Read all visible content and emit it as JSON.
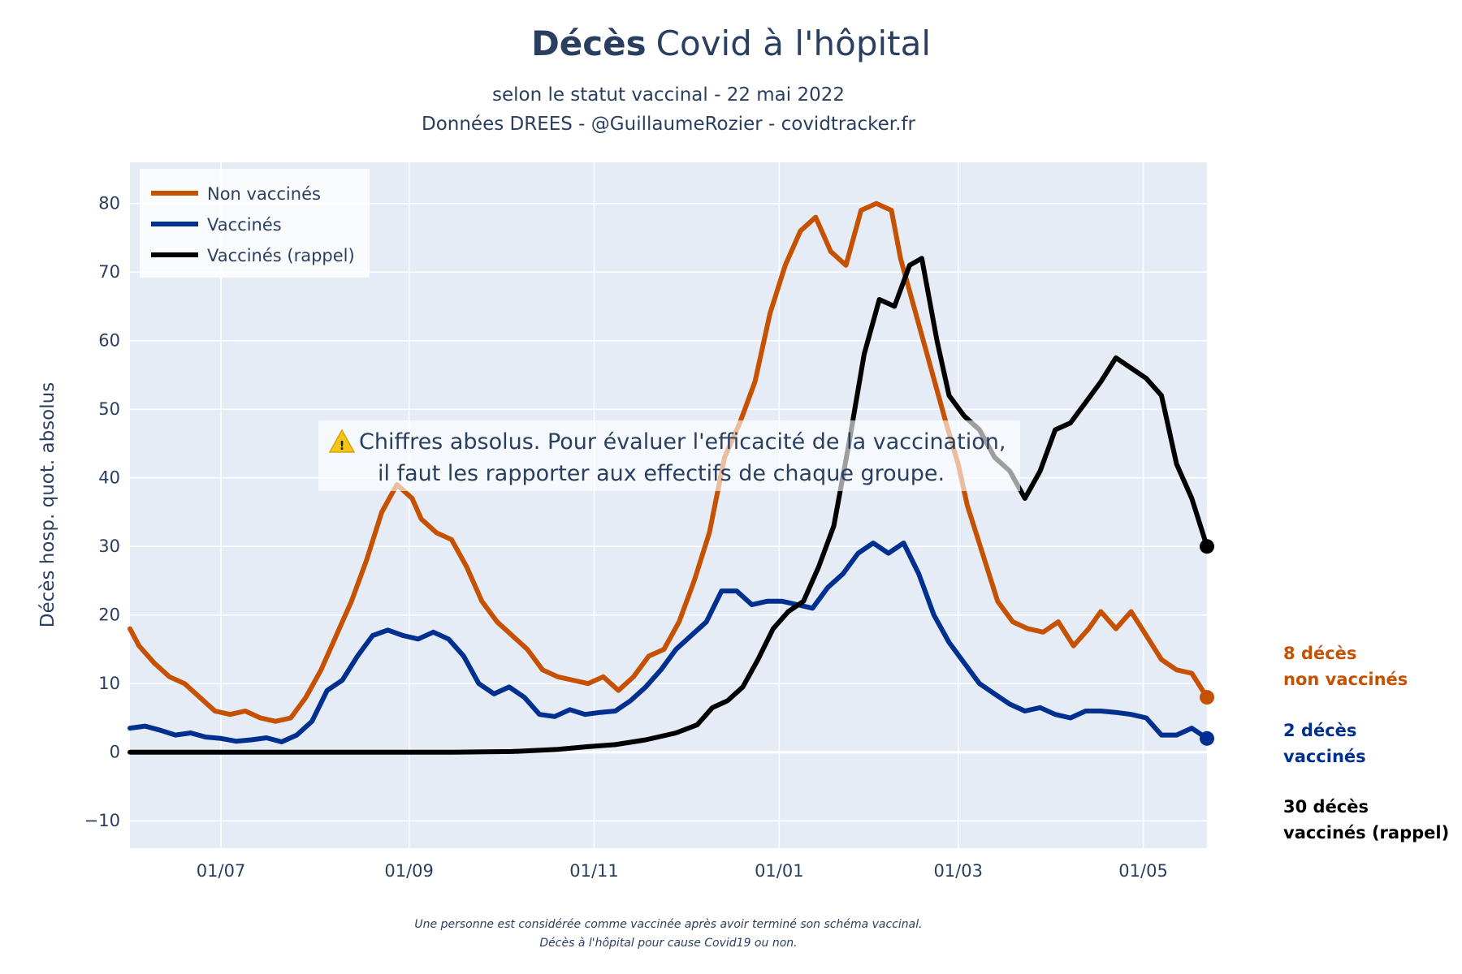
{
  "header": {
    "title_bold": "Décès",
    "title_rest": "Covid à l'hôpital",
    "subtitle_line1": "selon le statut vaccinal - 22 mai 2022",
    "subtitle_line2": "Données DREES - @GuillaumeRozier - covidtracker.fr"
  },
  "annotation": {
    "icon": "warning-icon",
    "line1": "Chiffres absolus. Pour évaluer l'efficacité de la vaccination,",
    "line2": "il faut les rapporter aux effectifs de chaque groupe."
  },
  "end_labels": {
    "non_vaccines_line1": "8 décès",
    "non_vaccines_line2": "non vaccinés",
    "vaccines_line1": "2 décès",
    "vaccines_line2": "vaccinés",
    "rappel_line1": "30 décès",
    "rappel_line2": "vaccinés (rappel)"
  },
  "footer": {
    "line1": "Une personne est considérée comme vaccinée après avoir terminé son schéma vaccinal.",
    "line2": "Décès à l'hôpital pour cause Covid19 ou non."
  },
  "colors": {
    "non_vaccines": "#c65102",
    "vaccines": "#00308f",
    "rappel": "#000000",
    "plot_bg": "#e5ecf6",
    "grid": "#ffffff",
    "text": "#2a3f5f"
  },
  "chart_data": {
    "type": "line",
    "ylabel": "Décès hosp. quot. absolus",
    "xlabel": "",
    "xlim": [
      "2021-06-01",
      "2022-05-22"
    ],
    "ylim": [
      -14,
      86
    ],
    "xticks": [
      {
        "date": "2021-07-01",
        "label": "01/07"
      },
      {
        "date": "2021-09-01",
        "label": "01/09"
      },
      {
        "date": "2021-11-01",
        "label": "01/11"
      },
      {
        "date": "2022-01-01",
        "label": "01/01"
      },
      {
        "date": "2022-03-01",
        "label": "01/03"
      },
      {
        "date": "2022-05-01",
        "label": "01/05"
      }
    ],
    "yticks": [
      -10,
      0,
      10,
      20,
      30,
      40,
      50,
      60,
      70,
      80
    ],
    "grid": true,
    "legend_position": "top-left",
    "series": [
      {
        "name": "Non vaccinés",
        "color": "#c65102",
        "points": [
          [
            "2021-06-01",
            18
          ],
          [
            "2021-06-04",
            15.5
          ],
          [
            "2021-06-09",
            13
          ],
          [
            "2021-06-14",
            11
          ],
          [
            "2021-06-19",
            10
          ],
          [
            "2021-06-24",
            8
          ],
          [
            "2021-06-29",
            6
          ],
          [
            "2021-07-04",
            5.5
          ],
          [
            "2021-07-09",
            6
          ],
          [
            "2021-07-14",
            5
          ],
          [
            "2021-07-19",
            4.5
          ],
          [
            "2021-07-24",
            5
          ],
          [
            "2021-07-29",
            8
          ],
          [
            "2021-08-03",
            12
          ],
          [
            "2021-08-08",
            17
          ],
          [
            "2021-08-13",
            22
          ],
          [
            "2021-08-18",
            28
          ],
          [
            "2021-08-23",
            35
          ],
          [
            "2021-08-28",
            39
          ],
          [
            "2021-09-02",
            37
          ],
          [
            "2021-09-05",
            34
          ],
          [
            "2021-09-10",
            32
          ],
          [
            "2021-09-15",
            31
          ],
          [
            "2021-09-20",
            27
          ],
          [
            "2021-09-25",
            22
          ],
          [
            "2021-09-30",
            19
          ],
          [
            "2021-10-05",
            17
          ],
          [
            "2021-10-10",
            15
          ],
          [
            "2021-10-15",
            12
          ],
          [
            "2021-10-20",
            11
          ],
          [
            "2021-10-25",
            10.5
          ],
          [
            "2021-10-30",
            10
          ],
          [
            "2021-11-04",
            11
          ],
          [
            "2021-11-09",
            9
          ],
          [
            "2021-11-14",
            11
          ],
          [
            "2021-11-19",
            14
          ],
          [
            "2021-11-24",
            15
          ],
          [
            "2021-11-29",
            19
          ],
          [
            "2021-12-04",
            25
          ],
          [
            "2021-12-09",
            32
          ],
          [
            "2021-12-14",
            43
          ],
          [
            "2021-12-19",
            48
          ],
          [
            "2021-12-24",
            54
          ],
          [
            "2021-12-29",
            64
          ],
          [
            "2022-01-03",
            71
          ],
          [
            "2022-01-08",
            76
          ],
          [
            "2022-01-13",
            78
          ],
          [
            "2022-01-18",
            73
          ],
          [
            "2022-01-23",
            71
          ],
          [
            "2022-01-28",
            79
          ],
          [
            "2022-02-02",
            80
          ],
          [
            "2022-02-07",
            79
          ],
          [
            "2022-02-10",
            72
          ],
          [
            "2022-02-15",
            64
          ],
          [
            "2022-02-20",
            56
          ],
          [
            "2022-02-25",
            48
          ],
          [
            "2022-03-01",
            42
          ],
          [
            "2022-03-04",
            36
          ],
          [
            "2022-03-09",
            29
          ],
          [
            "2022-03-14",
            22
          ],
          [
            "2022-03-19",
            19
          ],
          [
            "2022-03-24",
            18
          ],
          [
            "2022-03-29",
            17.5
          ],
          [
            "2022-04-03",
            19
          ],
          [
            "2022-04-08",
            15.5
          ],
          [
            "2022-04-13",
            18
          ],
          [
            "2022-04-17",
            20.5
          ],
          [
            "2022-04-22",
            18
          ],
          [
            "2022-04-27",
            20.5
          ],
          [
            "2022-05-02",
            17
          ],
          [
            "2022-05-07",
            13.5
          ],
          [
            "2022-05-12",
            12
          ],
          [
            "2022-05-17",
            11.5
          ],
          [
            "2022-05-22",
            8
          ]
        ]
      },
      {
        "name": "Vaccinés",
        "color": "#00308f",
        "points": [
          [
            "2021-06-01",
            3.5
          ],
          [
            "2021-06-06",
            3.8
          ],
          [
            "2021-06-11",
            3.2
          ],
          [
            "2021-06-16",
            2.5
          ],
          [
            "2021-06-21",
            2.8
          ],
          [
            "2021-06-26",
            2.2
          ],
          [
            "2021-07-01",
            2
          ],
          [
            "2021-07-06",
            1.6
          ],
          [
            "2021-07-11",
            1.8
          ],
          [
            "2021-07-16",
            2.1
          ],
          [
            "2021-07-21",
            1.5
          ],
          [
            "2021-07-26",
            2.5
          ],
          [
            "2021-07-31",
            4.5
          ],
          [
            "2021-08-05",
            9
          ],
          [
            "2021-08-10",
            10.5
          ],
          [
            "2021-08-15",
            14
          ],
          [
            "2021-08-20",
            17
          ],
          [
            "2021-08-25",
            17.8
          ],
          [
            "2021-08-30",
            17
          ],
          [
            "2021-09-04",
            16.5
          ],
          [
            "2021-09-09",
            17.5
          ],
          [
            "2021-09-14",
            16.5
          ],
          [
            "2021-09-19",
            14
          ],
          [
            "2021-09-24",
            10
          ],
          [
            "2021-09-29",
            8.5
          ],
          [
            "2021-10-04",
            9.5
          ],
          [
            "2021-10-09",
            8
          ],
          [
            "2021-10-14",
            5.5
          ],
          [
            "2021-10-19",
            5.2
          ],
          [
            "2021-10-24",
            6.2
          ],
          [
            "2021-10-29",
            5.5
          ],
          [
            "2021-11-03",
            5.8
          ],
          [
            "2021-11-08",
            6
          ],
          [
            "2021-11-13",
            7.5
          ],
          [
            "2021-11-18",
            9.5
          ],
          [
            "2021-11-23",
            12
          ],
          [
            "2021-11-28",
            15
          ],
          [
            "2021-12-03",
            17
          ],
          [
            "2021-12-08",
            19
          ],
          [
            "2021-12-13",
            23.5
          ],
          [
            "2021-12-18",
            23.5
          ],
          [
            "2021-12-23",
            21.5
          ],
          [
            "2021-12-28",
            22
          ],
          [
            "2022-01-02",
            22
          ],
          [
            "2022-01-07",
            21.5
          ],
          [
            "2022-01-12",
            21
          ],
          [
            "2022-01-17",
            24
          ],
          [
            "2022-01-22",
            26
          ],
          [
            "2022-01-27",
            29
          ],
          [
            "2022-02-01",
            30.5
          ],
          [
            "2022-02-06",
            29
          ],
          [
            "2022-02-11",
            30.5
          ],
          [
            "2022-02-16",
            26
          ],
          [
            "2022-02-21",
            20
          ],
          [
            "2022-02-26",
            16
          ],
          [
            "2022-03-03",
            13
          ],
          [
            "2022-03-08",
            10
          ],
          [
            "2022-03-13",
            8.5
          ],
          [
            "2022-03-18",
            7
          ],
          [
            "2022-03-23",
            6
          ],
          [
            "2022-03-28",
            6.5
          ],
          [
            "2022-04-02",
            5.5
          ],
          [
            "2022-04-07",
            5
          ],
          [
            "2022-04-12",
            6
          ],
          [
            "2022-04-17",
            6
          ],
          [
            "2022-04-22",
            5.8
          ],
          [
            "2022-04-27",
            5.5
          ],
          [
            "2022-05-02",
            5
          ],
          [
            "2022-05-07",
            2.5
          ],
          [
            "2022-05-12",
            2.5
          ],
          [
            "2022-05-17",
            3.5
          ],
          [
            "2022-05-22",
            2
          ]
        ]
      },
      {
        "name": "Vaccinés (rappel)",
        "color": "#000000",
        "points": [
          [
            "2021-06-01",
            0
          ],
          [
            "2021-09-15",
            0
          ],
          [
            "2021-10-05",
            0.1
          ],
          [
            "2021-10-20",
            0.4
          ],
          [
            "2021-10-30",
            0.8
          ],
          [
            "2021-11-08",
            1.1
          ],
          [
            "2021-11-18",
            1.8
          ],
          [
            "2021-11-28",
            2.8
          ],
          [
            "2021-12-05",
            4
          ],
          [
            "2021-12-10",
            6.5
          ],
          [
            "2021-12-15",
            7.5
          ],
          [
            "2021-12-20",
            9.5
          ],
          [
            "2021-12-25",
            13.5
          ],
          [
            "2021-12-30",
            18
          ],
          [
            "2022-01-04",
            20.5
          ],
          [
            "2022-01-09",
            22
          ],
          [
            "2022-01-14",
            27
          ],
          [
            "2022-01-19",
            33
          ],
          [
            "2022-01-24",
            45
          ],
          [
            "2022-01-29",
            58
          ],
          [
            "2022-02-03",
            66
          ],
          [
            "2022-02-08",
            65
          ],
          [
            "2022-02-13",
            71
          ],
          [
            "2022-02-17",
            72
          ],
          [
            "2022-02-22",
            60
          ],
          [
            "2022-02-26",
            52
          ],
          [
            "2022-03-03",
            49
          ],
          [
            "2022-03-08",
            47
          ],
          [
            "2022-03-13",
            43
          ],
          [
            "2022-03-18",
            41
          ],
          [
            "2022-03-23",
            37
          ],
          [
            "2022-03-28",
            41
          ],
          [
            "2022-04-02",
            47
          ],
          [
            "2022-04-07",
            48
          ],
          [
            "2022-04-12",
            51
          ],
          [
            "2022-04-17",
            54
          ],
          [
            "2022-04-22",
            57.5
          ],
          [
            "2022-04-27",
            56
          ],
          [
            "2022-05-02",
            54.5
          ],
          [
            "2022-05-07",
            52
          ],
          [
            "2022-05-12",
            42
          ],
          [
            "2022-05-17",
            37
          ],
          [
            "2022-05-22",
            30
          ]
        ]
      }
    ]
  }
}
